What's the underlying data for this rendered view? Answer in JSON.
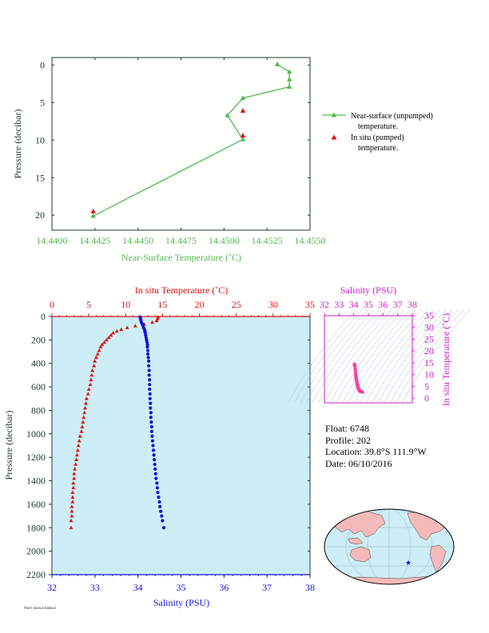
{
  "colors": {
    "green": "#52b94e",
    "red": "#e01010",
    "blue": "#1212d6",
    "magenta": "#d21ccf",
    "pink": "#ff3fa0",
    "plot_bg": "#cdeef7",
    "axis_dark": "#1e3a2a",
    "land": "#f6b9b9",
    "ocean": "#cdeef7"
  },
  "info": {
    "float": "Float:  6748",
    "profile": "Profile:  202",
    "location": "Location:  39.8°S  111.9°W",
    "date": "Date:  06/10/2016"
  },
  "footnote": "FNGT 0003-20160610",
  "chart_data": [
    {
      "type": "line",
      "xlabel": "Near-Surface Temperature (˚C)",
      "ylabel": "Pressure (decibar)",
      "xlim": [
        14.44,
        14.455
      ],
      "ylim": [
        22,
        -1
      ],
      "x_ticks": [
        "14.4400",
        "14.4425",
        "14.4450",
        "14.4475",
        "14.4500",
        "14.4525",
        "14.4550"
      ],
      "x_tick_values": [
        14.44,
        14.4425,
        14.445,
        14.4475,
        14.45,
        14.4525,
        14.455
      ],
      "y_ticks": [
        "0",
        "5",
        "10",
        "15",
        "20"
      ],
      "y_tick_values": [
        0,
        5,
        10,
        15,
        20
      ],
      "legend_position": "right",
      "series": [
        {
          "name": "Near-surface (unpumped) temperature.",
          "legend_line1": "Near-surface (unpumped)",
          "legend_line2": "temperature.",
          "color": "#52b94e",
          "marker": "triangle",
          "connected": true,
          "points": [
            [
              14.4531,
              -0.1
            ],
            [
              14.4538,
              0.9
            ],
            [
              14.4538,
              1.9
            ],
            [
              14.4538,
              2.9
            ],
            [
              14.4511,
              4.4
            ],
            [
              14.4502,
              6.7
            ],
            [
              14.4511,
              9.9
            ],
            [
              14.4424,
              20.1
            ]
          ]
        },
        {
          "name": "In situ (pumped) temperature.",
          "legend_line1": "In situ (pumped)",
          "legend_line2": "temperature.",
          "color": "#e01010",
          "marker": "triangle",
          "connected": false,
          "points": [
            [
              14.4511,
              6.1
            ],
            [
              14.4511,
              9.4
            ],
            [
              14.4424,
              19.5
            ]
          ]
        }
      ]
    },
    {
      "type": "line",
      "title_top": "In situ Temperature (˚C)",
      "xlabel": "Salinity (PSU)",
      "ylabel": "Pressure (decibar)",
      "temp_lim": [
        0,
        35
      ],
      "temp_ticks": [
        "0",
        "5",
        "10",
        "15",
        "20",
        "25",
        "30",
        "35"
      ],
      "temp_tick_values": [
        0,
        5,
        10,
        15,
        20,
        25,
        30,
        35
      ],
      "sal_lim": [
        32,
        38
      ],
      "sal_ticks": [
        "32",
        "33",
        "34",
        "35",
        "36",
        "37",
        "38"
      ],
      "sal_tick_values": [
        32,
        33,
        34,
        35,
        36,
        37,
        38
      ],
      "pressure_lim": [
        0,
        2200
      ],
      "pressure_ticks": [
        "0",
        "200",
        "400",
        "600",
        "800",
        "1000",
        "1200",
        "1400",
        "1600",
        "1800",
        "2000",
        "2200"
      ],
      "pressure_tick_values": [
        0,
        200,
        400,
        600,
        800,
        1000,
        1200,
        1400,
        1600,
        1800,
        2000,
        2200
      ],
      "temperature_series": {
        "color": "#e01010",
        "marker": "triangle",
        "points": [
          [
            14.4,
            5
          ],
          [
            14.3,
            20
          ],
          [
            14.2,
            35
          ],
          [
            13.6,
            50
          ],
          [
            12.5,
            65
          ],
          [
            11.3,
            80
          ],
          [
            10.2,
            95
          ],
          [
            9.4,
            110
          ],
          [
            8.8,
            125
          ],
          [
            8.3,
            140
          ],
          [
            8.0,
            160
          ],
          [
            7.7,
            180
          ],
          [
            7.4,
            200
          ],
          [
            7.1,
            220
          ],
          [
            6.8,
            240
          ],
          [
            6.6,
            260
          ],
          [
            6.4,
            290
          ],
          [
            6.2,
            320
          ],
          [
            6.0,
            350
          ],
          [
            5.8,
            380
          ],
          [
            5.7,
            420
          ],
          [
            5.5,
            460
          ],
          [
            5.4,
            500
          ],
          [
            5.3,
            540
          ],
          [
            5.2,
            580
          ],
          [
            5.0,
            620
          ],
          [
            4.9,
            660
          ],
          [
            4.7,
            700
          ],
          [
            4.6,
            740
          ],
          [
            4.5,
            780
          ],
          [
            4.4,
            820
          ],
          [
            4.3,
            860
          ],
          [
            4.2,
            900
          ],
          [
            4.1,
            940
          ],
          [
            4.0,
            980
          ],
          [
            3.8,
            1020
          ],
          [
            3.7,
            1060
          ],
          [
            3.6,
            1100
          ],
          [
            3.5,
            1140
          ],
          [
            3.4,
            1180
          ],
          [
            3.3,
            1220
          ],
          [
            3.2,
            1260
          ],
          [
            3.1,
            1300
          ],
          [
            3.0,
            1340
          ],
          [
            3.0,
            1380
          ],
          [
            2.9,
            1420
          ],
          [
            2.9,
            1460
          ],
          [
            2.8,
            1500
          ],
          [
            2.8,
            1540
          ],
          [
            2.8,
            1580
          ],
          [
            2.7,
            1620
          ],
          [
            2.7,
            1660
          ],
          [
            2.7,
            1700
          ],
          [
            2.6,
            1740
          ],
          [
            2.6,
            1800
          ]
        ]
      },
      "salinity_series": {
        "color": "#1212d6",
        "marker": "dot",
        "points": [
          [
            34.05,
            5
          ],
          [
            34.06,
            20
          ],
          [
            34.07,
            35
          ],
          [
            34.08,
            50
          ],
          [
            34.1,
            65
          ],
          [
            34.12,
            80
          ],
          [
            34.13,
            95
          ],
          [
            34.15,
            110
          ],
          [
            34.16,
            125
          ],
          [
            34.17,
            140
          ],
          [
            34.18,
            160
          ],
          [
            34.19,
            180
          ],
          [
            34.2,
            200
          ],
          [
            34.21,
            220
          ],
          [
            34.22,
            240
          ],
          [
            34.22,
            260
          ],
          [
            34.23,
            290
          ],
          [
            34.23,
            320
          ],
          [
            34.24,
            350
          ],
          [
            34.25,
            380
          ],
          [
            34.25,
            420
          ],
          [
            34.26,
            460
          ],
          [
            34.26,
            500
          ],
          [
            34.27,
            540
          ],
          [
            34.27,
            580
          ],
          [
            34.27,
            620
          ],
          [
            34.28,
            660
          ],
          [
            34.28,
            700
          ],
          [
            34.29,
            740
          ],
          [
            34.29,
            780
          ],
          [
            34.3,
            820
          ],
          [
            34.3,
            860
          ],
          [
            34.31,
            900
          ],
          [
            34.32,
            940
          ],
          [
            34.32,
            980
          ],
          [
            34.33,
            1020
          ],
          [
            34.34,
            1060
          ],
          [
            34.35,
            1100
          ],
          [
            34.36,
            1140
          ],
          [
            34.37,
            1180
          ],
          [
            34.38,
            1220
          ],
          [
            34.39,
            1260
          ],
          [
            34.4,
            1300
          ],
          [
            34.41,
            1340
          ],
          [
            34.42,
            1380
          ],
          [
            34.44,
            1420
          ],
          [
            34.45,
            1460
          ],
          [
            34.46,
            1500
          ],
          [
            34.48,
            1540
          ],
          [
            34.5,
            1580
          ],
          [
            34.51,
            1620
          ],
          [
            34.53,
            1660
          ],
          [
            34.55,
            1700
          ],
          [
            34.57,
            1740
          ],
          [
            34.6,
            1800
          ]
        ]
      }
    },
    {
      "type": "scatter",
      "title": "Salinity (PSU)",
      "xlabel": "Salinity (PSU)",
      "ylabel": "In situ Temperature (˚C)",
      "xlim": [
        32,
        38
      ],
      "ylim": [
        -2,
        35
      ],
      "x_ticks": [
        "32",
        "33",
        "34",
        "35",
        "36",
        "37",
        "38"
      ],
      "x_tick_values": [
        32,
        33,
        34,
        35,
        36,
        37,
        38
      ],
      "y_ticks": [
        "0",
        "5",
        "10",
        "15",
        "20",
        "25",
        "30",
        "35"
      ],
      "y_tick_values": [
        0,
        5,
        10,
        15,
        20,
        25,
        30,
        35
      ],
      "color": "#ff3fa0",
      "points": [
        [
          34.05,
          14.4
        ],
        [
          34.06,
          14.3
        ],
        [
          34.08,
          13.6
        ],
        [
          34.1,
          12.5
        ],
        [
          34.12,
          11.3
        ],
        [
          34.13,
          10.2
        ],
        [
          34.15,
          9.4
        ],
        [
          34.16,
          8.8
        ],
        [
          34.17,
          8.3
        ],
        [
          34.18,
          8.0
        ],
        [
          34.19,
          7.7
        ],
        [
          34.2,
          7.4
        ],
        [
          34.21,
          7.1
        ],
        [
          34.22,
          6.8
        ],
        [
          34.22,
          6.6
        ],
        [
          34.23,
          6.4
        ],
        [
          34.23,
          6.2
        ],
        [
          34.24,
          6.0
        ],
        [
          34.25,
          5.8
        ],
        [
          34.26,
          5.5
        ],
        [
          34.27,
          5.2
        ],
        [
          34.28,
          4.9
        ],
        [
          34.29,
          4.6
        ],
        [
          34.3,
          4.4
        ],
        [
          34.31,
          4.2
        ],
        [
          34.33,
          3.8
        ],
        [
          34.35,
          3.6
        ],
        [
          34.37,
          3.4
        ],
        [
          34.39,
          3.2
        ],
        [
          34.41,
          3.0
        ],
        [
          34.44,
          2.9
        ],
        [
          34.46,
          2.8
        ],
        [
          34.5,
          2.8
        ],
        [
          34.53,
          2.7
        ],
        [
          34.57,
          2.6
        ],
        [
          34.6,
          2.6
        ]
      ]
    }
  ]
}
